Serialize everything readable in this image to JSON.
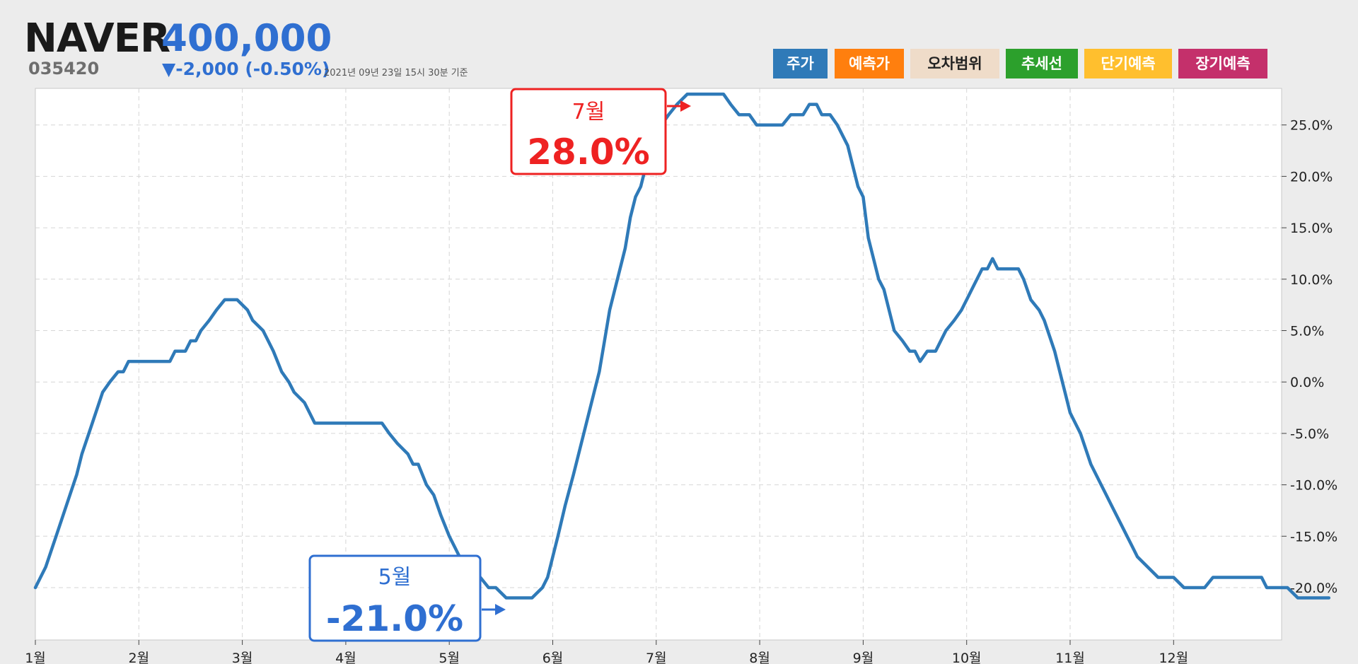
{
  "header": {
    "ticker": "NAVER",
    "price": "400,000",
    "code": "035420",
    "change": "▼-2,000 (-0.50%)",
    "as_of": "2021년 09년 23일 15시 30분 기준"
  },
  "legend": [
    {
      "label": "주가",
      "color": "#2f7ab8",
      "text_color": "#ffffff"
    },
    {
      "label": "예측가",
      "color": "#ff7f0e",
      "text_color": "#ffffff"
    },
    {
      "label": "오차범위",
      "color": "#efdcc9",
      "text_color": "#222222"
    },
    {
      "label": "추세선",
      "color": "#2ca02c",
      "text_color": "#ffffff"
    },
    {
      "label": "단기예측",
      "color": "#ffbf2e",
      "text_color": "#ffffff"
    },
    {
      "label": "장기예측",
      "color": "#c4306b",
      "text_color": "#ffffff"
    }
  ],
  "chart_data": {
    "type": "line",
    "x_tick_labels": [
      "1월",
      "2월",
      "3월",
      "4월",
      "5월",
      "6월",
      "7월",
      "8월",
      "9월",
      "10월",
      "11월",
      "12월"
    ],
    "y_tick_labels": [
      "25.0%",
      "20.0%",
      "15.0%",
      "10.0%",
      "5.0%",
      "0.0%",
      "-5.0%",
      "-10.0%",
      "-15.0%",
      "-20.0%"
    ],
    "y_ticks": [
      25,
      20,
      15,
      10,
      5,
      0,
      -5,
      -10,
      -15,
      -20
    ],
    "xlim": [
      1,
      13
    ],
    "ylim": [
      -24,
      30
    ],
    "grid": true,
    "series": [
      {
        "color": "#2f7ab8",
        "points": [
          [
            1.0,
            -20
          ],
          [
            1.1,
            -18
          ],
          [
            1.2,
            -15
          ],
          [
            1.3,
            -12
          ],
          [
            1.4,
            -9
          ],
          [
            1.45,
            -7
          ],
          [
            1.55,
            -4
          ],
          [
            1.65,
            -1
          ],
          [
            1.72,
            0
          ],
          [
            1.8,
            1
          ],
          [
            1.85,
            1
          ],
          [
            1.9,
            2
          ],
          [
            2.0,
            2
          ],
          [
            2.1,
            2
          ],
          [
            2.2,
            2
          ],
          [
            2.3,
            2
          ],
          [
            2.35,
            3
          ],
          [
            2.45,
            3
          ],
          [
            2.5,
            4
          ],
          [
            2.55,
            4
          ],
          [
            2.6,
            5
          ],
          [
            2.68,
            6
          ],
          [
            2.75,
            7
          ],
          [
            2.83,
            8
          ],
          [
            2.95,
            8
          ],
          [
            3.05,
            7
          ],
          [
            3.1,
            6
          ],
          [
            3.2,
            5
          ],
          [
            3.3,
            3
          ],
          [
            3.38,
            1
          ],
          [
            3.45,
            0
          ],
          [
            3.5,
            -1
          ],
          [
            3.6,
            -2
          ],
          [
            3.65,
            -3
          ],
          [
            3.7,
            -4
          ],
          [
            3.8,
            -4
          ],
          [
            4.0,
            -4
          ],
          [
            4.2,
            -4
          ],
          [
            4.35,
            -4
          ],
          [
            4.42,
            -5
          ],
          [
            4.5,
            -6
          ],
          [
            4.6,
            -7
          ],
          [
            4.65,
            -8
          ],
          [
            4.7,
            -8
          ],
          [
            4.78,
            -10
          ],
          [
            4.85,
            -11
          ],
          [
            4.92,
            -13
          ],
          [
            5.0,
            -15
          ],
          [
            5.05,
            -16
          ],
          [
            5.1,
            -17
          ],
          [
            5.2,
            -18
          ],
          [
            5.3,
            -19
          ],
          [
            5.38,
            -20
          ],
          [
            5.45,
            -20
          ],
          [
            5.55,
            -21
          ],
          [
            5.65,
            -21
          ],
          [
            5.8,
            -21
          ],
          [
            5.9,
            -20
          ],
          [
            5.95,
            -19
          ],
          [
            6.0,
            -17
          ],
          [
            6.05,
            -15
          ],
          [
            6.12,
            -12
          ],
          [
            6.2,
            -9
          ],
          [
            6.3,
            -5
          ],
          [
            6.4,
            -1
          ],
          [
            6.45,
            1
          ],
          [
            6.5,
            4
          ],
          [
            6.55,
            7
          ],
          [
            6.6,
            9
          ],
          [
            6.65,
            11
          ],
          [
            6.7,
            13
          ],
          [
            6.75,
            16
          ],
          [
            6.8,
            18
          ],
          [
            6.85,
            19
          ],
          [
            6.9,
            21
          ],
          [
            6.95,
            23
          ],
          [
            7.05,
            25
          ],
          [
            7.12,
            26
          ],
          [
            7.2,
            27
          ],
          [
            7.3,
            28
          ],
          [
            7.5,
            28
          ],
          [
            7.65,
            28
          ],
          [
            7.72,
            27
          ],
          [
            7.8,
            26
          ],
          [
            7.9,
            26
          ],
          [
            7.97,
            25
          ],
          [
            8.1,
            25
          ],
          [
            8.22,
            25
          ],
          [
            8.3,
            26
          ],
          [
            8.42,
            26
          ],
          [
            8.48,
            27
          ],
          [
            8.55,
            27
          ],
          [
            8.6,
            26
          ],
          [
            8.68,
            26
          ],
          [
            8.75,
            25
          ],
          [
            8.85,
            23
          ],
          [
            8.9,
            21
          ],
          [
            8.95,
            19
          ],
          [
            9.0,
            18
          ],
          [
            9.05,
            14
          ],
          [
            9.1,
            12
          ],
          [
            9.15,
            10
          ],
          [
            9.2,
            9
          ],
          [
            9.25,
            7
          ],
          [
            9.3,
            5
          ],
          [
            9.38,
            4
          ],
          [
            9.45,
            3
          ],
          [
            9.5,
            3
          ],
          [
            9.55,
            2
          ],
          [
            9.62,
            3
          ],
          [
            9.7,
            3
          ],
          [
            9.75,
            4
          ],
          [
            9.8,
            5
          ],
          [
            9.88,
            6
          ],
          [
            9.95,
            7
          ],
          [
            10.0,
            8
          ],
          [
            10.05,
            9
          ],
          [
            10.1,
            10
          ],
          [
            10.15,
            11
          ],
          [
            10.2,
            11
          ],
          [
            10.25,
            12
          ],
          [
            10.3,
            11
          ],
          [
            10.4,
            11
          ],
          [
            10.5,
            11
          ],
          [
            10.55,
            10
          ],
          [
            10.62,
            8
          ],
          [
            10.7,
            7
          ],
          [
            10.75,
            6
          ],
          [
            10.85,
            3
          ],
          [
            10.9,
            1
          ],
          [
            10.95,
            -1
          ],
          [
            11.0,
            -3
          ],
          [
            11.1,
            -5
          ],
          [
            11.2,
            -8
          ],
          [
            11.3,
            -10
          ],
          [
            11.35,
            -11
          ],
          [
            11.4,
            -12
          ],
          [
            11.5,
            -14
          ],
          [
            11.6,
            -16
          ],
          [
            11.65,
            -17
          ],
          [
            11.75,
            -18
          ],
          [
            11.85,
            -19
          ],
          [
            12.0,
            -19
          ],
          [
            12.1,
            -20
          ],
          [
            12.3,
            -20
          ],
          [
            12.38,
            -19
          ],
          [
            12.5,
            -19
          ],
          [
            12.7,
            -19
          ],
          [
            12.85,
            -19
          ],
          [
            12.9,
            -20
          ],
          [
            13.1,
            -20
          ],
          [
            13.2,
            -21
          ],
          [
            13.4,
            -21
          ],
          [
            13.5,
            -21
          ]
        ]
      }
    ],
    "annotations": [
      {
        "month": "7월",
        "value": "28.0%",
        "color": "#ee2222"
      },
      {
        "month": "5월",
        "value": "-21.0%",
        "color": "#2f6fd1"
      }
    ]
  }
}
